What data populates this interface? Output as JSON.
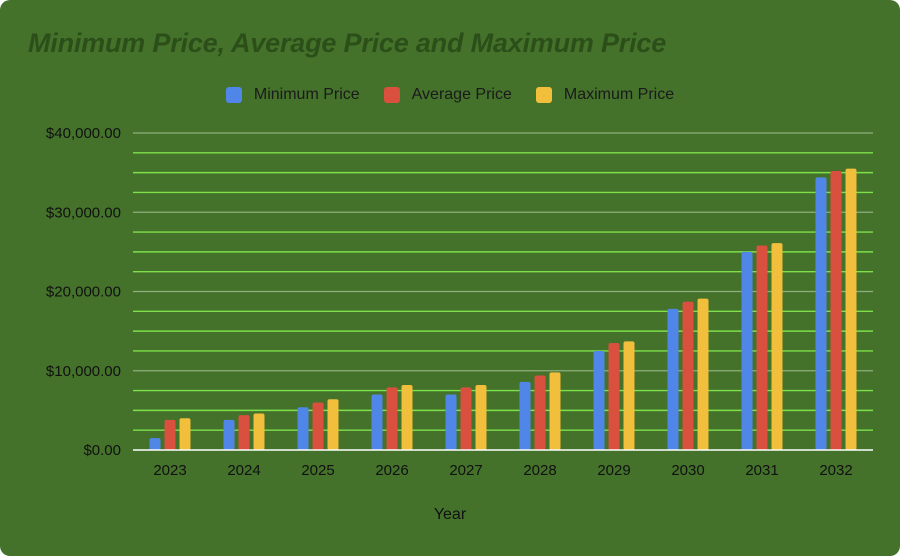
{
  "chart_data": {
    "type": "bar",
    "title": "Minimum Price, Average Price and Maximum Price",
    "xlabel": "Year",
    "ylabel": "",
    "categories": [
      "2023",
      "2024",
      "2025",
      "2026",
      "2027",
      "2028",
      "2029",
      "2030",
      "2031",
      "2032"
    ],
    "series": [
      {
        "name": "Minimum Price",
        "color": "#4f86e8",
        "values": [
          1500,
          3800,
          5400,
          7000,
          7000,
          8600,
          12500,
          17800,
          25000,
          34400
        ]
      },
      {
        "name": "Average Price",
        "color": "#d9503f",
        "values": [
          3800,
          4400,
          6000,
          7900,
          7900,
          9400,
          13500,
          18700,
          25800,
          35200
        ]
      },
      {
        "name": "Maximum Price",
        "color": "#f2bf3c",
        "values": [
          4000,
          4600,
          6400,
          8200,
          8200,
          9800,
          13700,
          19100,
          26100,
          35500
        ]
      }
    ],
    "ylim": [
      0,
      40000
    ],
    "yticks": [
      "$0.00",
      "$10,000.00",
      "$20,000.00",
      "$30,000.00",
      "$40,000.00"
    ],
    "ytick_values": [
      0,
      10000,
      20000,
      30000,
      40000
    ],
    "grid": true,
    "legend_position": "top-center"
  },
  "colors": {
    "background": "#44722b",
    "title": "#2c4f1a",
    "major_grid": "#8fae7d",
    "minor_grid": "#7ee04a",
    "axis": "#ffffff",
    "text": "#111111"
  }
}
